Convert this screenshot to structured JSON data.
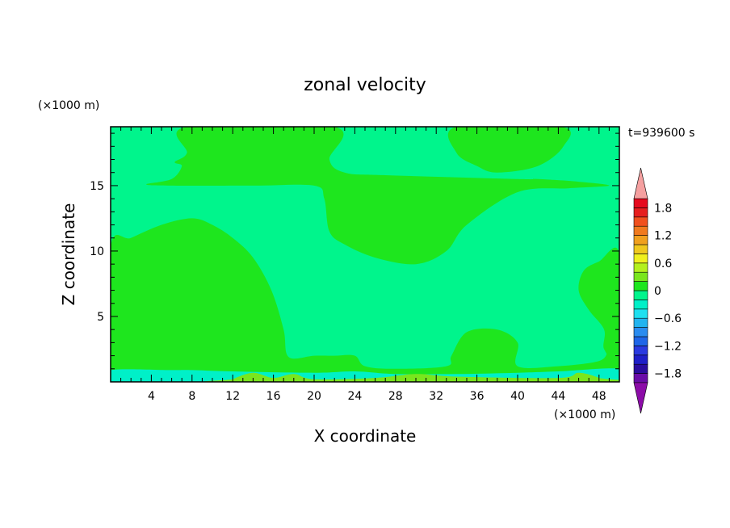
{
  "chart_data": {
    "type": "heatmap",
    "subtype": "filled-contour",
    "title": "zonal velocity",
    "xlabel": "X coordinate",
    "ylabel": "Z coordinate",
    "x_unit": "(×1000 m)",
    "y_unit": "(×1000 m)",
    "time_label": "t=939600 s",
    "xlim": [
      0,
      50
    ],
    "ylim": [
      0,
      19.5
    ],
    "x_ticks": [
      4,
      8,
      12,
      16,
      20,
      24,
      28,
      32,
      36,
      40,
      44,
      48
    ],
    "y_ticks": [
      5,
      10,
      15
    ],
    "grid": false,
    "colorbar": {
      "placement": "right",
      "levels": [
        -2.0,
        -1.8,
        -1.6,
        -1.4,
        -1.2,
        -1.0,
        -0.8,
        -0.6,
        -0.4,
        -0.2,
        0.0,
        0.2,
        0.4,
        0.6,
        0.8,
        1.0,
        1.2,
        1.4,
        1.6,
        1.8,
        2.0
      ],
      "colors": [
        "#6a0ca8",
        "#2a0c9e",
        "#1f1fc8",
        "#2a3ae0",
        "#1f66e8",
        "#2a8cf0",
        "#22b4f0",
        "#1ee0f0",
        "#00f0c8",
        "#00f58c",
        "#1ee61e",
        "#7ae61e",
        "#b4f01e",
        "#f0f01e",
        "#f0c81e",
        "#f0a01e",
        "#f07a1e",
        "#f0501e",
        "#e61e1e",
        "#e60a1e"
      ],
      "extend_low_color": "#8c0ca8",
      "extend_high_color": "#f5a0a0",
      "tick_values": [
        1.8,
        1.2,
        0.6,
        0,
        -0.6,
        -1.2,
        -1.8
      ],
      "tick_labels": [
        "1.8",
        "1.2",
        "0.6",
        "0",
        "−0.6",
        "−1.2",
        "−1.8"
      ]
    },
    "field": {
      "background_level": "-0.2 to 0",
      "regions": [
        {
          "level": "0 to 0.2",
          "outline": [
            [
              0,
              10.3
            ],
            [
              2,
              11
            ],
            [
              5,
              12
            ],
            [
              8,
              12.5
            ],
            [
              10,
              12
            ],
            [
              12,
              11
            ],
            [
              14,
              9.5
            ],
            [
              15.8,
              7
            ],
            [
              17,
              4
            ],
            [
              17.5,
              1.9
            ],
            [
              20,
              2
            ],
            [
              22,
              2
            ],
            [
              24,
              2
            ],
            [
              25,
              1.2
            ],
            [
              28,
              1
            ],
            [
              33,
              1.2
            ],
            [
              33.5,
              2
            ],
            [
              35,
              3.8
            ],
            [
              38,
              4
            ],
            [
              40,
              3
            ],
            [
              40,
              1.2
            ],
            [
              44,
              1.2
            ],
            [
              48,
              1.6
            ],
            [
              49,
              2.4
            ],
            [
              50,
              2.6
            ],
            [
              50,
              0.4
            ],
            [
              0,
              0.4
            ]
          ]
        },
        {
          "level": "0 to 0.2",
          "outline": [
            [
              7.5,
              19.5
            ],
            [
              22,
              19.5
            ],
            [
              21.5,
              17
            ],
            [
              23,
              16
            ],
            [
              27,
              15.8
            ],
            [
              40,
              15.5
            ],
            [
              42,
              15.5
            ],
            [
              46,
              15.3
            ],
            [
              49,
              15
            ],
            [
              45,
              14.8
            ],
            [
              40,
              14.5
            ],
            [
              35,
              12
            ],
            [
              33,
              10
            ],
            [
              30,
              9
            ],
            [
              26,
              9.5
            ],
            [
              23,
              10.5
            ],
            [
              21.5,
              11.5
            ],
            [
              21,
              14
            ],
            [
              20,
              15
            ],
            [
              14,
              15
            ],
            [
              6,
              15
            ],
            [
              3.5,
              15.1
            ],
            [
              6,
              15.5
            ],
            [
              7,
              16.5
            ],
            [
              6.3,
              16.8
            ],
            [
              7.5,
              17.5
            ]
          ]
        },
        {
          "level": "0 to 0.2",
          "outline": [
            [
              34,
              19.5
            ],
            [
              44.3,
              19.5
            ],
            [
              44.5,
              18
            ],
            [
              42,
              16.5
            ],
            [
              38,
              16
            ],
            [
              36,
              16.5
            ],
            [
              34,
              17.5
            ]
          ]
        },
        {
          "level": "0 to 0.2",
          "outline": [
            [
              50,
              9.8
            ],
            [
              48,
              9.2
            ],
            [
              46.5,
              8.5
            ],
            [
              46,
              7
            ],
            [
              47,
              5.5
            ],
            [
              48.5,
              4
            ],
            [
              48.5,
              2.5
            ],
            [
              50,
              1.8
            ]
          ]
        },
        {
          "level": "-0.4 to -0.2",
          "outline": [
            [
              0,
              0
            ],
            [
              0,
              0.9
            ],
            [
              6,
              0.9
            ],
            [
              8,
              0.9
            ],
            [
              12,
              0.8
            ],
            [
              20,
              0.7
            ],
            [
              24,
              0.8
            ],
            [
              28,
              0.6
            ],
            [
              34,
              0.6
            ],
            [
              40,
              0.7
            ],
            [
              44,
              0.8
            ],
            [
              50,
              1.0
            ],
            [
              50,
              0
            ]
          ]
        },
        {
          "level": "0.2 to 0.4",
          "outline": [
            [
              12,
              0.2
            ],
            [
              14,
              0.7
            ],
            [
              16,
              0.3
            ],
            [
              18,
              0.6
            ],
            [
              20,
              0.2
            ],
            [
              26,
              0.3
            ],
            [
              30,
              0.6
            ],
            [
              34,
              0.4
            ],
            [
              44,
              0.3
            ],
            [
              46,
              0.7
            ],
            [
              48,
              0.3
            ],
            [
              48,
              0
            ],
            [
              12,
              0
            ]
          ]
        }
      ]
    }
  }
}
